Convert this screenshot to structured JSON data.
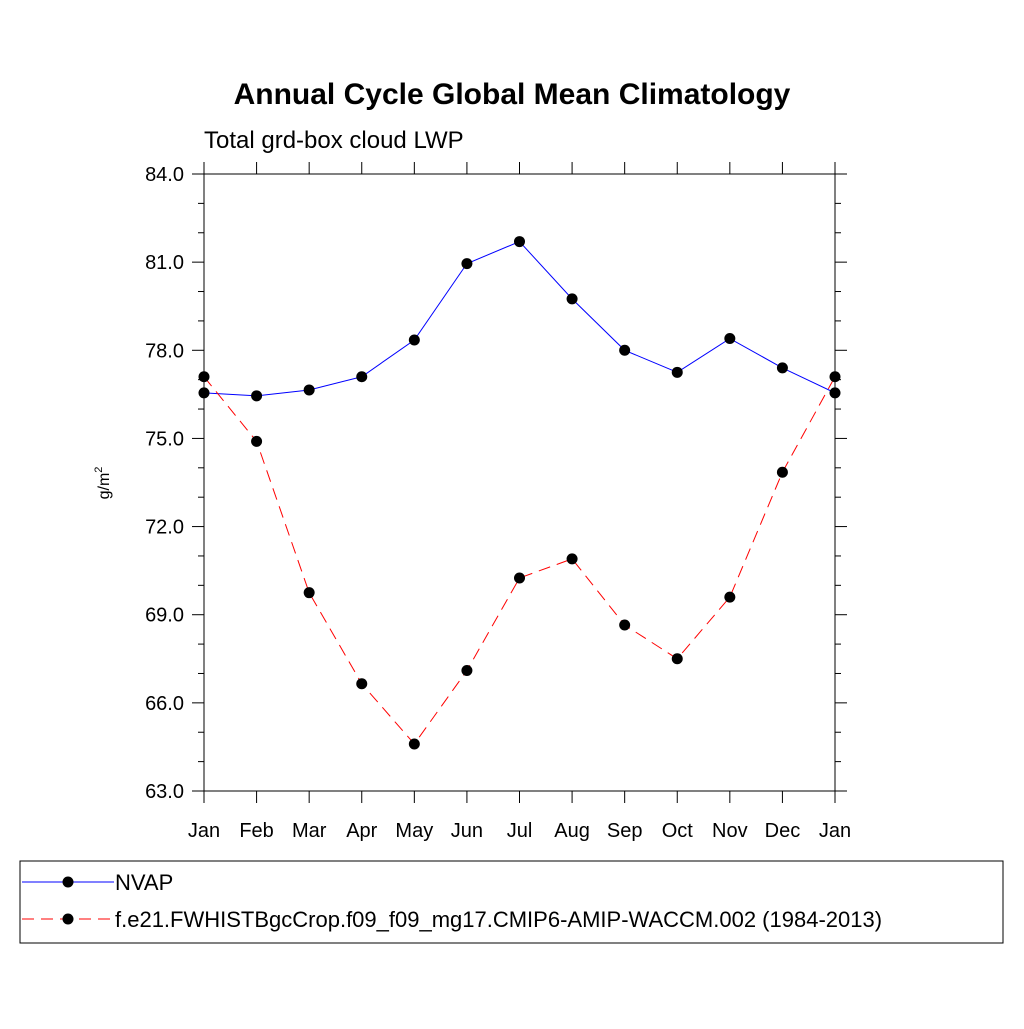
{
  "chart_data": {
    "type": "line",
    "title": "Annual Cycle Global Mean Climatology",
    "subtitle": "Total grd-box cloud LWP",
    "ylabel_base": "g/m",
    "ylabel_sup": "2",
    "xlabel": "",
    "categories": [
      "Jan",
      "Feb",
      "Mar",
      "Apr",
      "May",
      "Jun",
      "Jul",
      "Aug",
      "Sep",
      "Oct",
      "Nov",
      "Dec",
      "Jan"
    ],
    "ylim": [
      63.0,
      84.0
    ],
    "yticks": [
      "63.0",
      "66.0",
      "69.0",
      "72.0",
      "75.0",
      "78.0",
      "81.0",
      "84.0"
    ],
    "grid": false,
    "legend_position": "bottom",
    "series": [
      {
        "name": "NVAP",
        "color": "#0000ff",
        "dash": "solid",
        "marker": "filled-circle",
        "values": [
          76.55,
          76.45,
          76.65,
          77.1,
          78.35,
          80.95,
          81.7,
          79.75,
          78.0,
          77.25,
          78.4,
          77.4,
          76.55
        ]
      },
      {
        "name": "f.e21.FWHISTBgcCrop.f09_f09_mg17.CMIP6-AMIP-WACCM.002 (1984-2013)",
        "color": "#ff0000",
        "dash": "dashed",
        "marker": "filled-circle",
        "values": [
          77.1,
          74.9,
          69.75,
          66.65,
          64.6,
          67.1,
          70.25,
          70.9,
          68.65,
          67.5,
          69.6,
          73.85,
          77.1
        ]
      }
    ]
  }
}
